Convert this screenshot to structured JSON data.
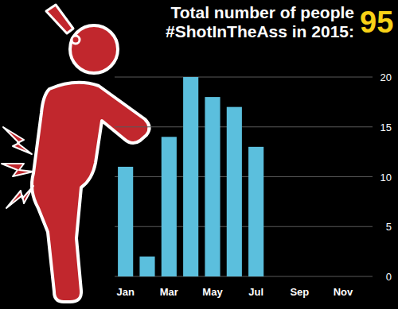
{
  "chart_data": {
    "type": "bar",
    "title": "Total number of people #ShotInTheAss in 2015:",
    "total": 95,
    "categories": [
      "Jan",
      null,
      "Mar",
      null,
      "May",
      null,
      "Jul",
      null,
      "Sep",
      null,
      "Nov",
      null
    ],
    "values": [
      11,
      2,
      14,
      20,
      18,
      17,
      13,
      0,
      0,
      0,
      0,
      0
    ],
    "color": "#5bbfdd",
    "ylim": [
      0,
      20
    ],
    "yticks": [
      0,
      5,
      10,
      15,
      20
    ],
    "grid": true
  }
}
